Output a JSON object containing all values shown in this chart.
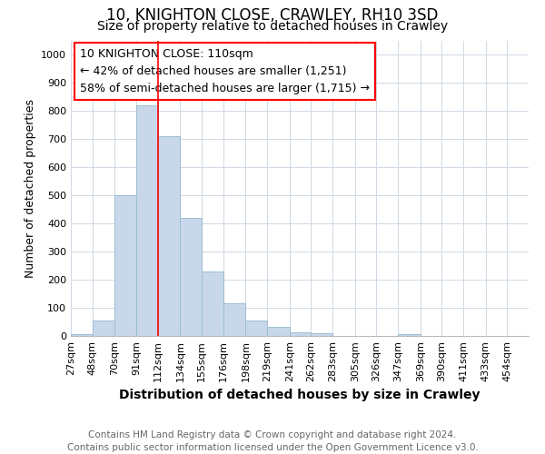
{
  "title": "10, KNIGHTON CLOSE, CRAWLEY, RH10 3SD",
  "subtitle": "Size of property relative to detached houses in Crawley",
  "xlabel": "Distribution of detached houses by size in Crawley",
  "ylabel": "Number of detached properties",
  "bar_color": "#c8d8ea",
  "bar_edge_color": "#9bbdd4",
  "bins": [
    27,
    48,
    70,
    91,
    112,
    134,
    155,
    176,
    198,
    219,
    241,
    262,
    283,
    305,
    326,
    347,
    369,
    390,
    411,
    433,
    454
  ],
  "counts": [
    7,
    55,
    500,
    820,
    710,
    420,
    230,
    115,
    55,
    33,
    12,
    10,
    0,
    0,
    0,
    8,
    0,
    0,
    0,
    0
  ],
  "ylim": [
    0,
    1050
  ],
  "yticks": [
    0,
    100,
    200,
    300,
    400,
    500,
    600,
    700,
    800,
    900,
    1000
  ],
  "red_line_x": 112,
  "annotation_title": "10 KNIGHTON CLOSE: 110sqm",
  "annotation_line2": "← 42% of detached houses are smaller (1,251)",
  "annotation_line3": "58% of semi-detached houses are larger (1,715) →",
  "footer_line1": "Contains HM Land Registry data © Crown copyright and database right 2024.",
  "footer_line2": "Contains public sector information licensed under the Open Government Licence v3.0.",
  "background_color": "#ffffff",
  "grid_color": "#d0d8e4",
  "title_fontsize": 12,
  "subtitle_fontsize": 10,
  "xlabel_fontsize": 10,
  "ylabel_fontsize": 9,
  "tick_fontsize": 8,
  "footer_fontsize": 7.5,
  "annotation_fontsize": 9
}
